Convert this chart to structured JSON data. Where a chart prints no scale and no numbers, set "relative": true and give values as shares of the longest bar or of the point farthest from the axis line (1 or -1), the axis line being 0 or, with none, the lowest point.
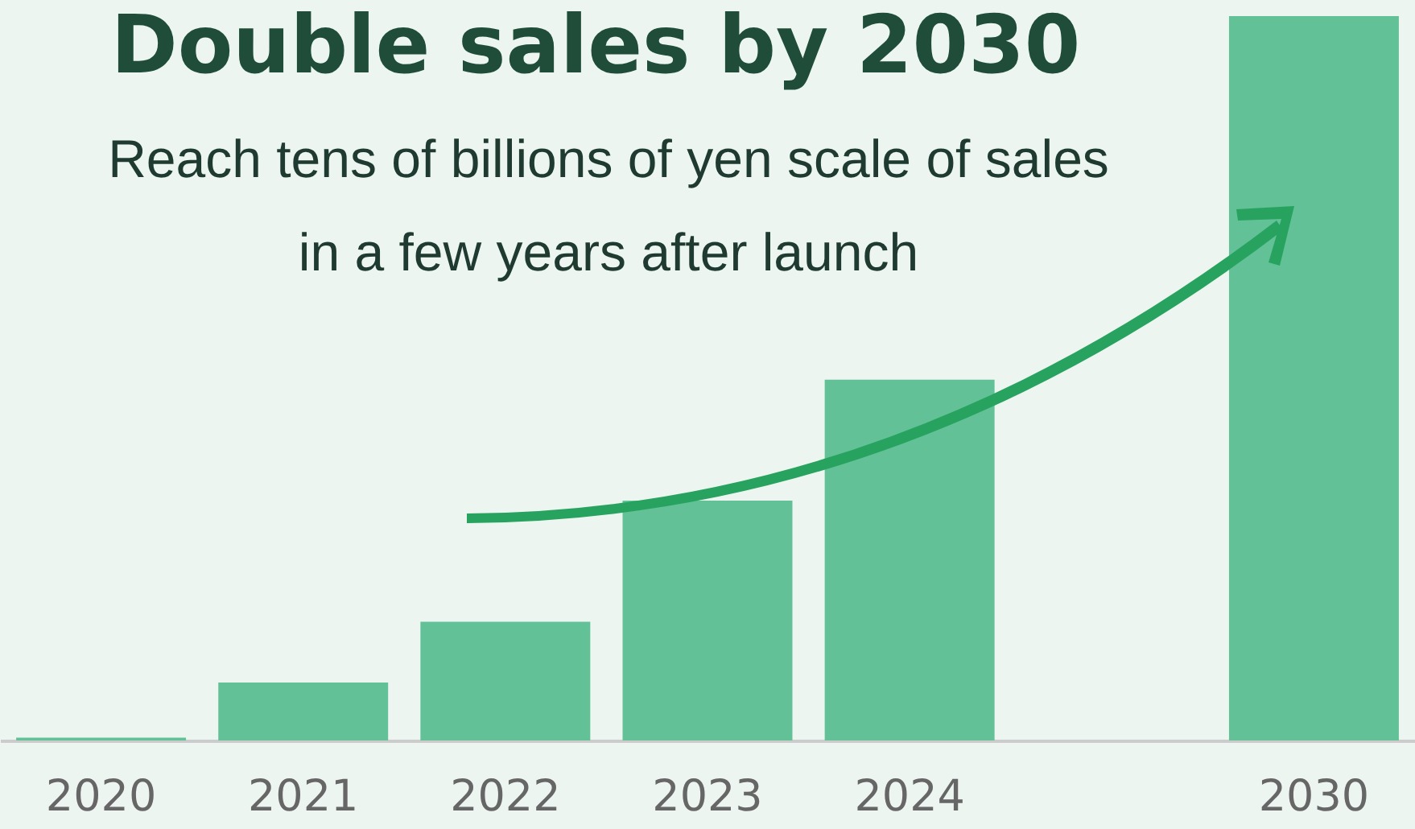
{
  "chart_data": {
    "type": "bar",
    "title": "Double sales by 2030",
    "subtitle": "Reach tens of billions of yen scale of sales\nin a few years after launch",
    "categories": [
      "2020",
      "2021",
      "2022",
      "2023",
      "2024",
      null,
      "2030"
    ],
    "values": [
      0.004,
      0.08,
      0.164,
      0.331,
      0.498,
      null,
      1
    ],
    "color": "#62c196",
    "relative": true
  }
}
